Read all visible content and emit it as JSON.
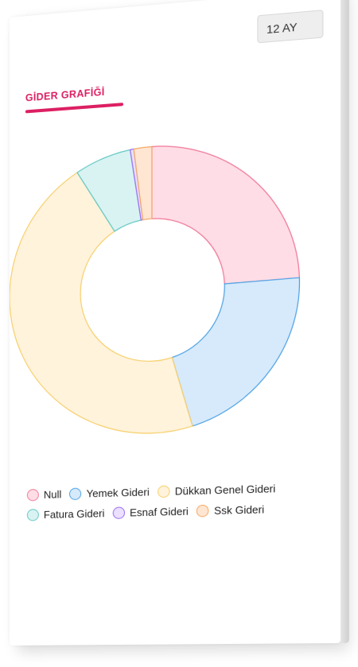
{
  "header": {
    "period_label": "12 AY"
  },
  "card": {
    "title": "GİDER GRAFİĞİ"
  },
  "chart_data": {
    "type": "doughnut",
    "title": "GİDER GRAFİĞİ",
    "legend_position": "bottom",
    "categories": [
      "Null",
      "Yemek Gideri",
      "Dükkan Genel Gideri",
      "Fatura Gideri",
      "Esnaf Gideri",
      "Ssk Gideri"
    ],
    "values": [
      24.5,
      21.0,
      45.8,
      6.3,
      0.4,
      2.0
    ],
    "colors": {
      "fill": [
        "#ffdde6",
        "#d7eafb",
        "#fff3dc",
        "#d9f3f2",
        "#ebe0ff",
        "#ffe6d2"
      ],
      "border": [
        "#f07a9a",
        "#4fa3e6",
        "#f7cf6a",
        "#63c8c3",
        "#9a6df0",
        "#f4a867"
      ]
    }
  }
}
